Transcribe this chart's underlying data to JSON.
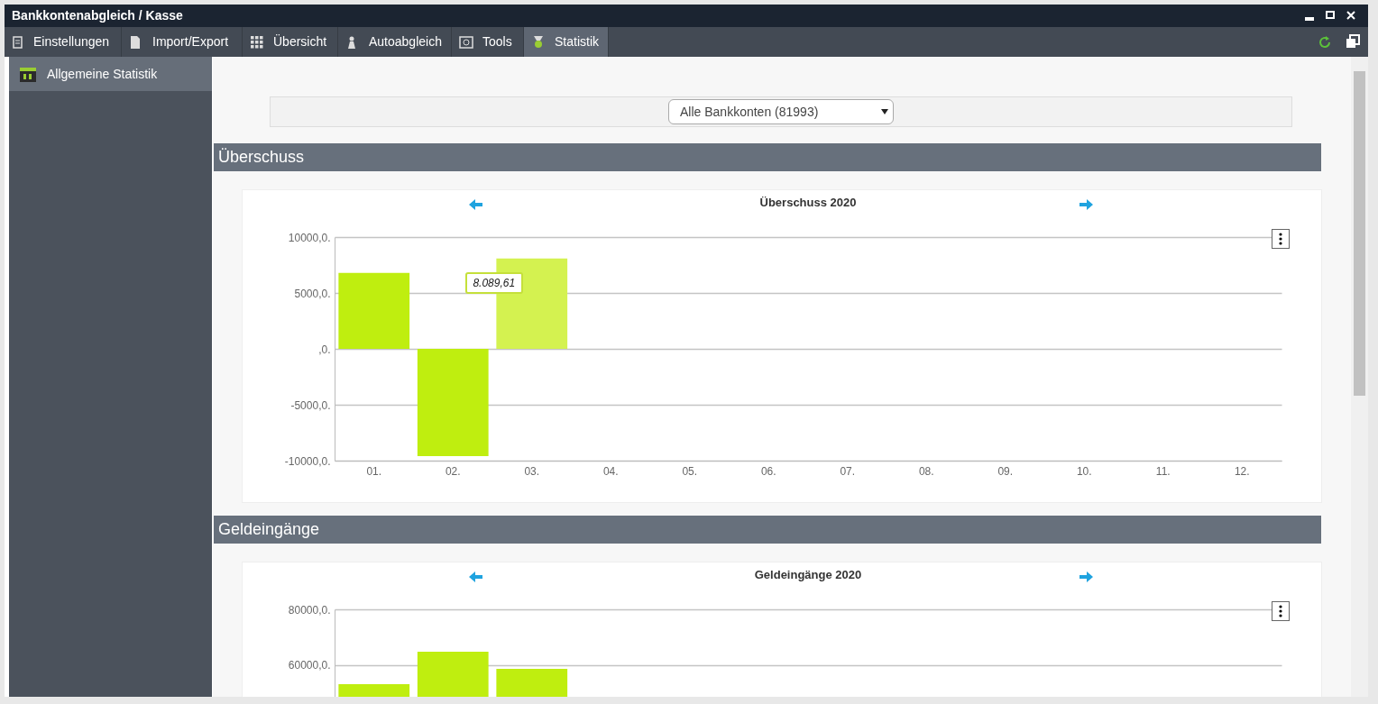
{
  "chart_data": [
    {
      "type": "other",
      "annotations": [
        "Bankkontenabgleich / Kasse",
        "Einstellungen",
        "Import/Export",
        "Übersicht",
        "Autoabgleich",
        "Tools",
        "Statistik",
        "Allgemeine Statistik",
        "Alle Bankkonten (81993)",
        "Überschuss",
        "Geldeingänge"
      ]
    },
    {
      "type": "bar",
      "title": "Überschuss 2020",
      "categories": [
        "01.",
        "02.",
        "03.",
        "04.",
        "05.",
        "06.",
        "07.",
        "08.",
        "09.",
        "10.",
        "11.",
        "12."
      ],
      "values": [
        6800,
        -9600,
        8089.61,
        null,
        null,
        null,
        null,
        null,
        null,
        null,
        null,
        null
      ],
      "colors": [
        "#bfee0f",
        "#bfee0f",
        "#d4f250",
        "#bfee0f",
        "#bfee0f",
        "#bfee0f",
        "#bfee0f",
        "#bfee0f",
        "#bfee0f",
        "#bfee0f",
        "#bfee0f",
        "#bfee0f"
      ],
      "ylim": [
        -10000,
        10000
      ],
      "yticks": [
        {
          "value": -10000,
          "label": "-10000,0."
        },
        {
          "value": -5000,
          "label": "-5000,0."
        },
        {
          "value": 0,
          "label": ",0."
        },
        {
          "value": 5000,
          "label": "5000,0."
        },
        {
          "value": 10000,
          "label": "10000,0."
        }
      ],
      "grid": "y",
      "annotations": [
        {
          "text": "8.089,61",
          "x": "03.",
          "y": 8089.61
        }
      ]
    },
    {
      "type": "bar",
      "title": "Geldeingänge 2020",
      "categories": [
        "01.",
        "02.",
        "03.",
        "04.",
        "05.",
        "06.",
        "07.",
        "08.",
        "09.",
        "10.",
        "11.",
        "12."
      ],
      "values": [
        53200,
        64800,
        58700,
        null,
        null,
        null,
        null,
        null,
        null,
        null,
        null,
        null
      ],
      "colors": [
        "#bfee0f",
        "#bfee0f",
        "#bfee0f",
        "#bfee0f",
        "#bfee0f",
        "#bfee0f",
        "#bfee0f",
        "#bfee0f",
        "#bfee0f",
        "#bfee0f",
        "#bfee0f",
        "#bfee0f"
      ],
      "ylim": [
        48000,
        80000
      ],
      "yticks": [
        {
          "value": 60000,
          "label": "60000,0."
        },
        {
          "value": 80000,
          "label": "80000,0."
        }
      ],
      "grid": "y",
      "tick_labels": "y"
    }
  ]
}
